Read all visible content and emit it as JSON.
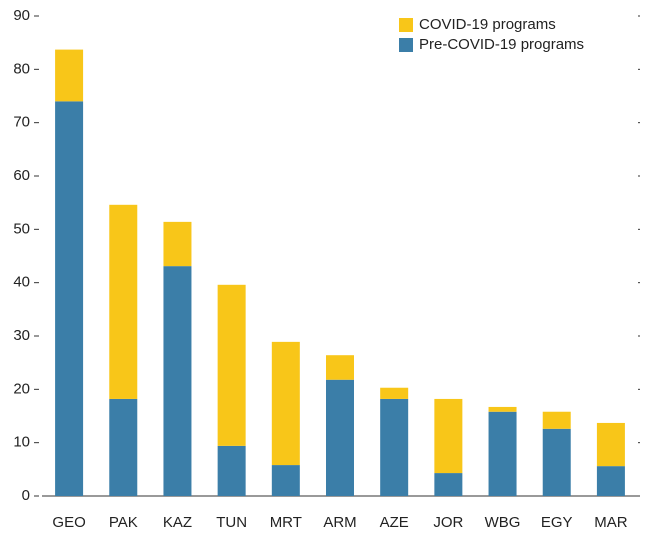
{
  "chart_data": {
    "type": "stacked_bar",
    "categories": [
      "GEO",
      "PAK",
      "KAZ",
      "TUN",
      "MRT",
      "ARM",
      "AZE",
      "JOR",
      "WBG",
      "EGY",
      "MAR"
    ],
    "series": [
      {
        "name": "Pre-COVID-19 programs",
        "color": "#3b7ea8",
        "values": [
          74,
          18.2,
          43.1,
          9.4,
          5.8,
          21.8,
          18.2,
          4.3,
          15.8,
          12.6,
          5.6
        ]
      },
      {
        "name": "COVID-19 programs",
        "color": "#f8c619",
        "values": [
          9.7,
          36.4,
          8.3,
          30.2,
          23.1,
          4.6,
          2.1,
          13.9,
          0.9,
          3.2,
          8.1
        ]
      }
    ],
    "ylim": [
      0,
      90
    ],
    "yticks": [
      0,
      10,
      20,
      30,
      40,
      50,
      60,
      70,
      80,
      90
    ]
  }
}
